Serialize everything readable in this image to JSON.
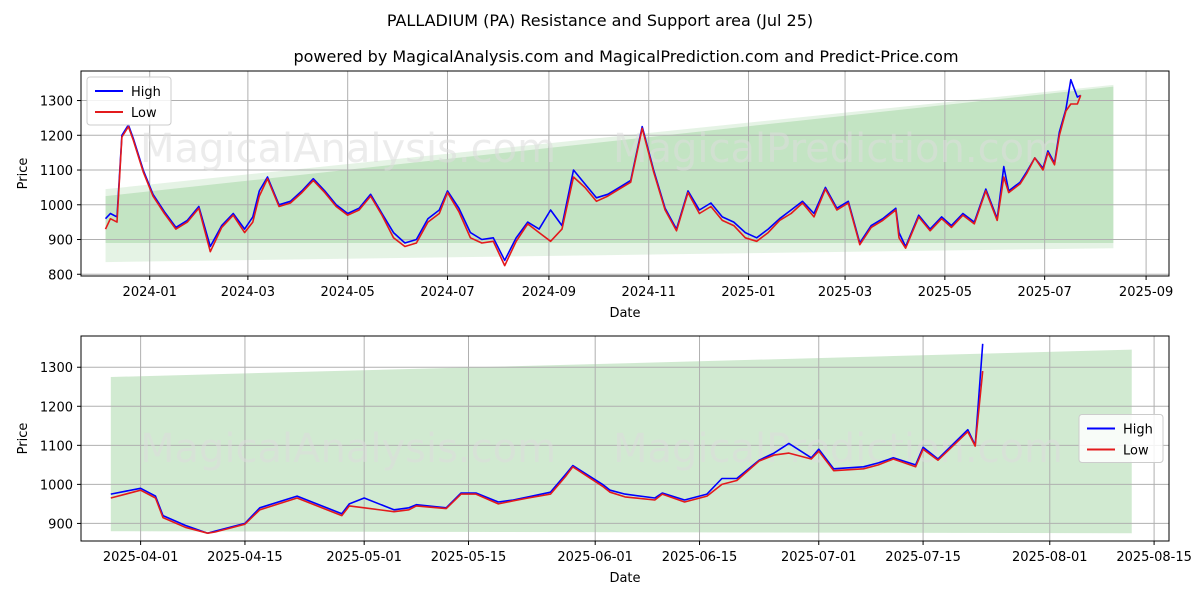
{
  "title": "PALLADIUM (PA) Resistance and Support area (Jul 25)",
  "subtitle": "powered by MagicalAnalysis.com and MagicalPrediction.com and Predict-Price.com",
  "watermarks": [
    "MagicalAnalysis.com",
    "MagicalPrediction.com"
  ],
  "colors": {
    "high": "#0000ff",
    "low": "#e31a1c",
    "band": "#2ca02c"
  },
  "chart_data": [
    {
      "type": "line",
      "xlabel": "Date",
      "ylabel": "Price",
      "ylim": [
        795,
        1385
      ],
      "xlim": [
        "2023-11-20",
        "2025-09-15"
      ],
      "x_ticks": [
        "2024-01",
        "2024-03",
        "2024-05",
        "2024-07",
        "2024-09",
        "2024-11",
        "2025-01",
        "2025-03",
        "2025-05",
        "2025-07",
        "2025-09"
      ],
      "x_tick_dates": [
        "2024-01-01",
        "2024-03-01",
        "2024-05-01",
        "2024-07-01",
        "2024-09-01",
        "2024-11-01",
        "2025-01-01",
        "2025-03-01",
        "2025-05-01",
        "2025-07-01",
        "2025-09-01"
      ],
      "y_ticks": [
        800,
        900,
        1000,
        1100,
        1200,
        1300
      ],
      "grid": true,
      "legend": "top-left",
      "bands": [
        {
          "x": [
            "2023-12-05",
            "2025-08-12"
          ],
          "upper": [
            1045,
            1345
          ],
          "lower": [
            835,
            875
          ],
          "opacity": 0.12
        },
        {
          "x": [
            "2023-12-05",
            "2025-08-12"
          ],
          "upper": [
            1025,
            1340
          ],
          "lower": [
            890,
            890
          ],
          "opacity": 0.18
        }
      ],
      "series": [
        {
          "name": "High",
          "x": [
            "2023-12-05",
            "2023-12-08",
            "2023-12-12",
            "2023-12-15",
            "2023-12-19",
            "2023-12-22",
            "2023-12-28",
            "2024-01-03",
            "2024-01-10",
            "2024-01-17",
            "2024-01-24",
            "2024-01-31",
            "2024-02-07",
            "2024-02-14",
            "2024-02-21",
            "2024-02-28",
            "2024-03-04",
            "2024-03-08",
            "2024-03-13",
            "2024-03-20",
            "2024-03-27",
            "2024-04-03",
            "2024-04-10",
            "2024-04-17",
            "2024-04-24",
            "2024-05-01",
            "2024-05-08",
            "2024-05-15",
            "2024-05-22",
            "2024-05-29",
            "2024-06-05",
            "2024-06-12",
            "2024-06-19",
            "2024-06-26",
            "2024-07-01",
            "2024-07-08",
            "2024-07-15",
            "2024-07-22",
            "2024-07-29",
            "2024-08-05",
            "2024-08-12",
            "2024-08-19",
            "2024-08-26",
            "2024-09-02",
            "2024-09-09",
            "2024-09-16",
            "2024-09-23",
            "2024-09-30",
            "2024-10-07",
            "2024-10-14",
            "2024-10-21",
            "2024-10-28",
            "2024-11-04",
            "2024-11-11",
            "2024-11-18",
            "2024-11-25",
            "2024-12-02",
            "2024-12-09",
            "2024-12-16",
            "2024-12-23",
            "2024-12-30",
            "2025-01-06",
            "2025-01-13",
            "2025-01-20",
            "2025-01-27",
            "2025-02-03",
            "2025-02-10",
            "2025-02-17",
            "2025-02-24",
            "2025-03-03",
            "2025-03-10",
            "2025-03-17",
            "2025-03-24",
            "2025-03-28",
            "2025-04-01",
            "2025-04-03",
            "2025-04-07",
            "2025-04-15",
            "2025-04-22",
            "2025-04-29",
            "2025-05-05",
            "2025-05-12",
            "2025-05-19",
            "2025-05-26",
            "2025-06-02",
            "2025-06-06",
            "2025-06-09",
            "2025-06-16",
            "2025-06-20",
            "2025-06-25",
            "2025-06-30",
            "2025-07-03",
            "2025-07-07",
            "2025-07-10",
            "2025-07-14",
            "2025-07-17",
            "2025-07-21",
            "2025-07-23"
          ],
          "values": [
            960,
            975,
            965,
            1200,
            1230,
            1190,
            1100,
            1030,
            980,
            935,
            955,
            995,
            880,
            940,
            975,
            930,
            965,
            1040,
            1080,
            1000,
            1010,
            1040,
            1075,
            1040,
            1000,
            975,
            990,
            1030,
            975,
            920,
            890,
            900,
            960,
            985,
            1040,
            990,
            920,
            900,
            905,
            840,
            905,
            950,
            930,
            985,
            940,
            1100,
            1060,
            1020,
            1030,
            1050,
            1070,
            1225,
            1100,
            990,
            930,
            1040,
            985,
            1005,
            965,
            950,
            920,
            905,
            930,
            960,
            985,
            1010,
            975,
            1050,
            990,
            1010,
            890,
            940,
            960,
            975,
            990,
            920,
            880,
            970,
            930,
            965,
            940,
            975,
            950,
            1045,
            960,
            1110,
            1040,
            1065,
            1095,
            1135,
            1105,
            1155,
            1120,
            1210,
            1275,
            1360,
            1310,
            1315
          ],
          "values_note": null
        },
        {
          "name": "Low",
          "x": [
            "2023-12-05",
            "2023-12-08",
            "2023-12-12",
            "2023-12-15",
            "2023-12-19",
            "2023-12-22",
            "2023-12-28",
            "2024-01-03",
            "2024-01-10",
            "2024-01-17",
            "2024-01-24",
            "2024-01-31",
            "2024-02-07",
            "2024-02-14",
            "2024-02-21",
            "2024-02-28",
            "2024-03-04",
            "2024-03-08",
            "2024-03-13",
            "2024-03-20",
            "2024-03-27",
            "2024-04-03",
            "2024-04-10",
            "2024-04-17",
            "2024-04-24",
            "2024-05-01",
            "2024-05-08",
            "2024-05-15",
            "2024-05-22",
            "2024-05-29",
            "2024-06-05",
            "2024-06-12",
            "2024-06-19",
            "2024-06-26",
            "2024-07-01",
            "2024-07-08",
            "2024-07-15",
            "2024-07-22",
            "2024-07-29",
            "2024-08-05",
            "2024-08-12",
            "2024-08-19",
            "2024-08-26",
            "2024-09-02",
            "2024-09-09",
            "2024-09-16",
            "2024-09-23",
            "2024-09-30",
            "2024-10-07",
            "2024-10-14",
            "2024-10-21",
            "2024-10-28",
            "2024-11-04",
            "2024-11-11",
            "2024-11-18",
            "2024-11-25",
            "2024-12-02",
            "2024-12-09",
            "2024-12-16",
            "2024-12-23",
            "2024-12-30",
            "2025-01-06",
            "2025-01-13",
            "2025-01-20",
            "2025-01-27",
            "2025-02-03",
            "2025-02-10",
            "2025-02-17",
            "2025-02-24",
            "2025-03-03",
            "2025-03-10",
            "2025-03-17",
            "2025-03-24",
            "2025-03-28",
            "2025-04-01",
            "2025-04-03",
            "2025-04-07",
            "2025-04-15",
            "2025-04-22",
            "2025-04-29",
            "2025-05-05",
            "2025-05-12",
            "2025-05-19",
            "2025-05-26",
            "2025-06-02",
            "2025-06-06",
            "2025-06-09",
            "2025-06-16",
            "2025-06-20",
            "2025-06-25",
            "2025-06-30",
            "2025-07-03",
            "2025-07-07",
            "2025-07-10",
            "2025-07-14",
            "2025-07-17",
            "2025-07-21",
            "2025-07-23"
          ],
          "values": [
            930,
            960,
            950,
            1195,
            1225,
            1185,
            1095,
            1025,
            975,
            930,
            950,
            990,
            865,
            935,
            970,
            920,
            950,
            1025,
            1075,
            995,
            1005,
            1035,
            1070,
            1035,
            995,
            970,
            985,
            1025,
            970,
            905,
            880,
            890,
            950,
            975,
            1035,
            980,
            905,
            890,
            895,
            825,
            895,
            945,
            920,
            895,
            930,
            1080,
            1050,
            1010,
            1025,
            1045,
            1065,
            1220,
            1095,
            985,
            925,
            1035,
            975,
            995,
            955,
            940,
            905,
            895,
            920,
            955,
            975,
            1005,
            965,
            1045,
            985,
            1005,
            885,
            935,
            955,
            970,
            985,
            905,
            875,
            965,
            925,
            960,
            935,
            970,
            945,
            1040,
            955,
            1080,
            1035,
            1060,
            1090,
            1135,
            1100,
            1150,
            1115,
            1200,
            1270,
            1290,
            1290,
            1315
          ]
        }
      ]
    },
    {
      "type": "line",
      "xlabel": "Date",
      "ylabel": "Price",
      "ylim": [
        855,
        1380
      ],
      "xlim": [
        "2025-03-24",
        "2025-08-17"
      ],
      "x_ticks": [
        "2025-04-01",
        "2025-04-15",
        "2025-05-01",
        "2025-05-15",
        "2025-06-01",
        "2025-06-15",
        "2025-07-01",
        "2025-07-15",
        "2025-08-01",
        "2025-08-15"
      ],
      "y_ticks": [
        900,
        1000,
        1100,
        1200,
        1300
      ],
      "grid": true,
      "legend": "right",
      "bands": [
        {
          "x": [
            "2025-03-28",
            "2025-08-12"
          ],
          "upper": [
            1275,
            1345
          ],
          "lower": [
            880,
            875
          ],
          "opacity": 0.22
        }
      ],
      "series": [
        {
          "name": "High",
          "x": [
            "2025-03-28",
            "2025-04-01",
            "2025-04-03",
            "2025-04-04",
            "2025-04-07",
            "2025-04-10",
            "2025-04-11",
            "2025-04-15",
            "2025-04-17",
            "2025-04-22",
            "2025-04-24",
            "2025-04-28",
            "2025-04-29",
            "2025-05-01",
            "2025-05-05",
            "2025-05-07",
            "2025-05-08",
            "2025-05-12",
            "2025-05-14",
            "2025-05-16",
            "2025-05-19",
            "2025-05-21",
            "2025-05-23",
            "2025-05-26",
            "2025-05-28",
            "2025-05-29",
            "2025-06-02",
            "2025-06-03",
            "2025-06-05",
            "2025-06-09",
            "2025-06-10",
            "2025-06-13",
            "2025-06-16",
            "2025-06-18",
            "2025-06-20",
            "2025-06-23",
            "2025-06-25",
            "2025-06-27",
            "2025-06-30",
            "2025-07-01",
            "2025-07-03",
            "2025-07-07",
            "2025-07-09",
            "2025-07-11",
            "2025-07-14",
            "2025-07-15",
            "2025-07-17",
            "2025-07-21",
            "2025-07-22",
            "2025-07-23"
          ],
          "values": [
            975,
            990,
            970,
            920,
            895,
            875,
            880,
            900,
            940,
            970,
            955,
            925,
            950,
            965,
            935,
            940,
            948,
            940,
            978,
            978,
            955,
            960,
            968,
            980,
            1025,
            1048,
            1000,
            985,
            975,
            965,
            978,
            960,
            975,
            1015,
            1015,
            1062,
            1080,
            1105,
            1068,
            1090,
            1040,
            1045,
            1055,
            1068,
            1050,
            1095,
            1065,
            1140,
            1100,
            1360
          ]
        },
        {
          "name": "Low",
          "x": [
            "2025-03-28",
            "2025-04-01",
            "2025-04-03",
            "2025-04-04",
            "2025-04-07",
            "2025-04-10",
            "2025-04-11",
            "2025-04-15",
            "2025-04-17",
            "2025-04-22",
            "2025-04-24",
            "2025-04-28",
            "2025-04-29",
            "2025-05-01",
            "2025-05-05",
            "2025-05-07",
            "2025-05-08",
            "2025-05-12",
            "2025-05-14",
            "2025-05-16",
            "2025-05-19",
            "2025-05-21",
            "2025-05-23",
            "2025-05-26",
            "2025-05-28",
            "2025-05-29",
            "2025-06-02",
            "2025-06-03",
            "2025-06-05",
            "2025-06-09",
            "2025-06-10",
            "2025-06-13",
            "2025-06-16",
            "2025-06-18",
            "2025-06-20",
            "2025-06-23",
            "2025-06-25",
            "2025-06-27",
            "2025-06-30",
            "2025-07-01",
            "2025-07-03",
            "2025-07-07",
            "2025-07-09",
            "2025-07-11",
            "2025-07-14",
            "2025-07-15",
            "2025-07-17",
            "2025-07-21",
            "2025-07-22",
            "2025-07-23"
          ],
          "values": [
            965,
            985,
            965,
            915,
            890,
            875,
            878,
            898,
            935,
            965,
            950,
            920,
            945,
            940,
            930,
            935,
            945,
            938,
            975,
            975,
            950,
            958,
            965,
            975,
            1020,
            1045,
            995,
            980,
            968,
            960,
            975,
            955,
            970,
            1000,
            1010,
            1060,
            1075,
            1080,
            1065,
            1085,
            1035,
            1040,
            1050,
            1065,
            1045,
            1090,
            1062,
            1135,
            1098,
            1290
          ]
        }
      ]
    }
  ]
}
